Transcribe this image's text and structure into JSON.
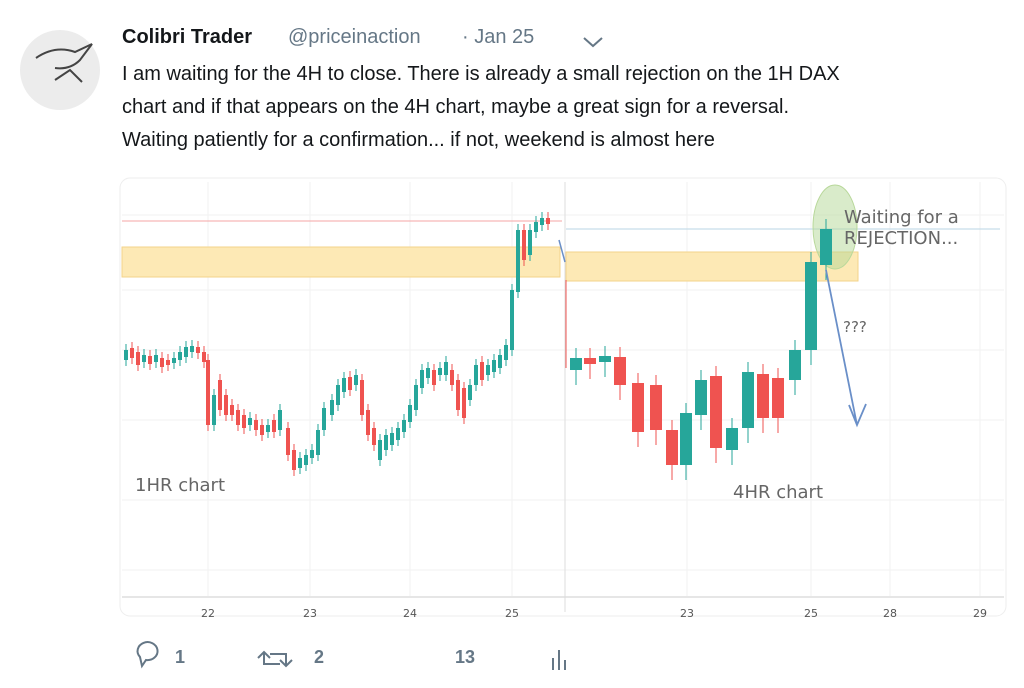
{
  "tweet": {
    "author": "Colibri Trader",
    "handle": "@priceinaction",
    "date": "· Jan 25",
    "text_lines": [
      "I am waiting for the 4H to close. There is already a small rejection on the 1H DAX",
      "chart and if that appears on the 4H chart, maybe a great sign for a reversal.",
      "Waiting patiently for a confirmation... if not, weekend is almost here"
    ],
    "image": {
      "left_chart": {
        "label": "1HR chart",
        "x_labels": [
          "22",
          "23",
          "24",
          "25"
        ]
      },
      "right_chart": {
        "label": "4HR chart",
        "x_labels": [
          "23",
          "25",
          "28",
          "29"
        ],
        "annotation_lines": [
          "Waiting for a",
          "REJECTION..."
        ],
        "question": "???"
      }
    },
    "actions": {
      "replies": "1",
      "retweets": "2",
      "likes": "13"
    }
  }
}
